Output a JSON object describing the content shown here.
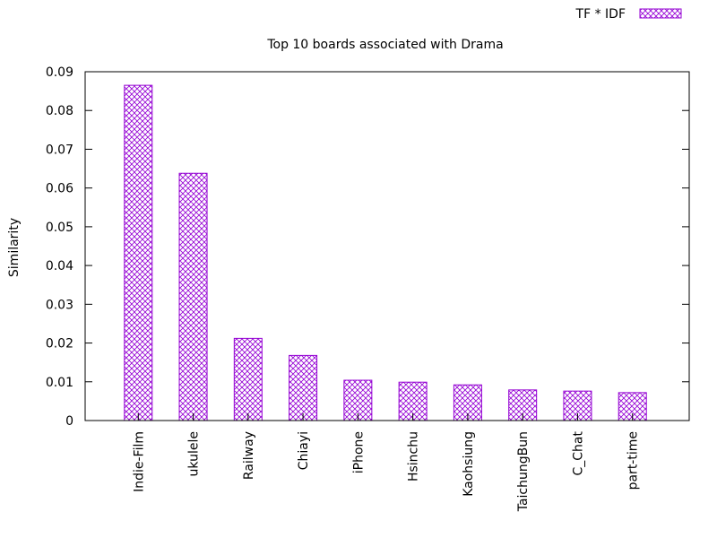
{
  "chart_data": {
    "type": "bar",
    "title": "Top 10 boards associated with Drama",
    "xlabel": "",
    "ylabel": "Similarity",
    "ylim": [
      0,
      0.09
    ],
    "yticks": [
      "0",
      "0.01",
      "0.02",
      "0.03",
      "0.04",
      "0.05",
      "0.06",
      "0.07",
      "0.08",
      "0.09"
    ],
    "categories": [
      "Indie-Film",
      "ukulele",
      "Railway",
      "Chiayi",
      "iPhone",
      "Hsinchu",
      "Kaohsiung",
      "TaichungBun",
      "C_Chat",
      "part-time"
    ],
    "series": [
      {
        "name": "TF * IDF",
        "color": "#9400d3",
        "pattern": "crosshatch",
        "values": [
          0.0865,
          0.0638,
          0.0212,
          0.0168,
          0.0104,
          0.0099,
          0.0092,
          0.0079,
          0.0076,
          0.0072
        ]
      }
    ],
    "legend_position": "top-right",
    "grid": false
  }
}
